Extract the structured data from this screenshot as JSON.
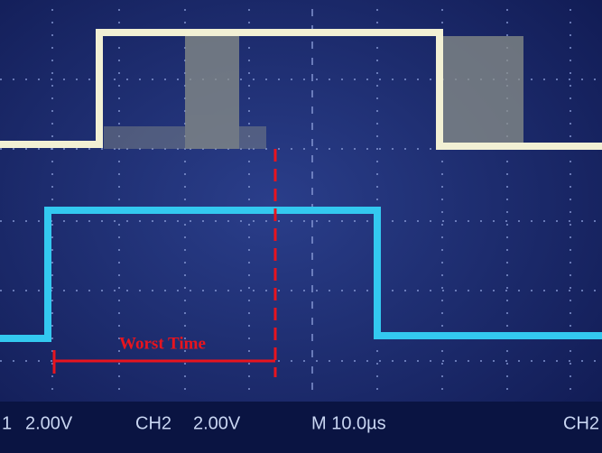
{
  "annotation": "Worst Time",
  "status_bar": {
    "ch1_fragment": "1",
    "ch1_scale": "2.00V",
    "ch2_label": "CH2",
    "ch2_scale": "2.00V",
    "timebase": "M 10.0µs",
    "trigger_source": "CH2"
  }
}
